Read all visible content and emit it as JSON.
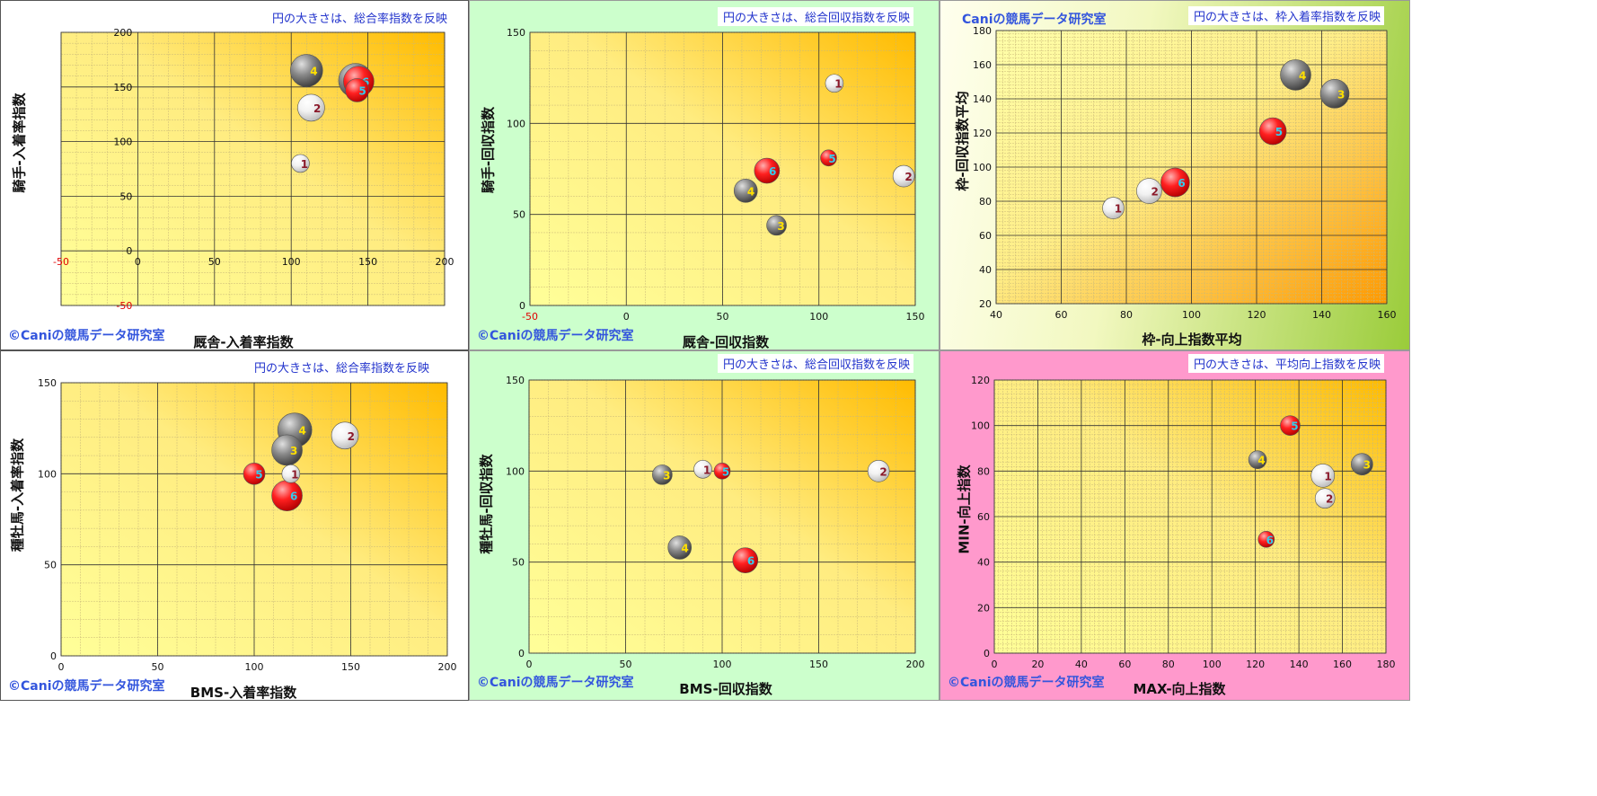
{
  "colors": {
    "red_ball": "#e00000",
    "white_ball": "#f2f2f2",
    "gray_ball": "#7a7a7a",
    "label_yellow": "#ffe000",
    "label_cyan": "#33ccee",
    "label_maroon": "#8b1a2b",
    "panel_green": "#ccffcc",
    "panel_pink": "#ff99cc",
    "credit_blue": "#3355dd"
  },
  "chart_data": [
    {
      "type": "bubble",
      "note": "円の大きさは、総合率指数を反映",
      "credit": "©Caniの競馬データ研究室",
      "xlabel": "厩舎-入着率指数",
      "ylabel": "騎手-入着率指数",
      "xlim": [
        -50,
        200
      ],
      "ylim": [
        -50,
        200
      ],
      "xticks": [
        -50,
        0,
        50,
        100,
        150,
        200
      ],
      "yticks": [
        -50,
        0,
        50,
        100,
        150,
        200
      ],
      "grid": true,
      "legend": "none",
      "points": [
        {
          "label": "1",
          "x": 106,
          "y": 80,
          "size": 10,
          "color": "white"
        },
        {
          "label": "2",
          "x": 113,
          "y": 131,
          "size": 15,
          "color": "white"
        },
        {
          "label": "3",
          "x": 142,
          "y": 156,
          "size": 19,
          "color": "gray"
        },
        {
          "label": "4",
          "x": 110,
          "y": 165,
          "size": 18,
          "color": "gray"
        },
        {
          "label": "5",
          "x": 143,
          "y": 147,
          "size": 13,
          "color": "red"
        },
        {
          "label": "6",
          "x": 144,
          "y": 155,
          "size": 17,
          "color": "red"
        }
      ]
    },
    {
      "type": "bubble",
      "note": "円の大きさは、総合回収指数を反映",
      "credit": "©Caniの競馬データ研究室",
      "xlabel": "厩舎-回収指数",
      "ylabel": "騎手-回収指数",
      "xlim": [
        -50,
        150
      ],
      "ylim": [
        0,
        150
      ],
      "xticks": [
        -50,
        0,
        50,
        100,
        150
      ],
      "yticks": [
        0,
        50,
        100,
        150
      ],
      "grid": true,
      "legend": "none",
      "points": [
        {
          "label": "1",
          "x": 108,
          "y": 122,
          "size": 10,
          "color": "white"
        },
        {
          "label": "2",
          "x": 144,
          "y": 71,
          "size": 12,
          "color": "white"
        },
        {
          "label": "3",
          "x": 78,
          "y": 44,
          "size": 11,
          "color": "gray"
        },
        {
          "label": "4",
          "x": 62,
          "y": 63,
          "size": 13,
          "color": "gray"
        },
        {
          "label": "5",
          "x": 105,
          "y": 81,
          "size": 9,
          "color": "red"
        },
        {
          "label": "6",
          "x": 73,
          "y": 74,
          "size": 14,
          "color": "red"
        }
      ]
    },
    {
      "type": "bubble",
      "note": "円の大きさは、枠入着率指数を反映",
      "credit": "Caniの競馬データ研究室",
      "xlabel": "枠-向上指数平均",
      "ylabel": "枠-回収指数平均",
      "xlim": [
        40,
        160
      ],
      "ylim": [
        20,
        180
      ],
      "xticks": [
        40,
        60,
        80,
        100,
        120,
        140,
        160
      ],
      "yticks": [
        20,
        40,
        60,
        80,
        100,
        120,
        140,
        160,
        180
      ],
      "grid": true,
      "legend": "none",
      "points": [
        {
          "label": "1",
          "x": 76,
          "y": 76,
          "size": 12,
          "color": "white"
        },
        {
          "label": "2",
          "x": 87,
          "y": 86,
          "size": 14,
          "color": "white"
        },
        {
          "label": "3",
          "x": 144,
          "y": 143,
          "size": 16,
          "color": "gray"
        },
        {
          "label": "4",
          "x": 132,
          "y": 154,
          "size": 17,
          "color": "gray"
        },
        {
          "label": "5",
          "x": 125,
          "y": 121,
          "size": 15,
          "color": "red"
        },
        {
          "label": "6",
          "x": 95,
          "y": 91,
          "size": 16,
          "color": "red"
        }
      ]
    },
    {
      "type": "bubble",
      "note": "円の大きさは、総合率指数を反映",
      "credit": "©Caniの競馬データ研究室",
      "xlabel": "BMS-入着率指数",
      "ylabel": "種牡馬-入着率指数",
      "xlim": [
        0,
        200
      ],
      "ylim": [
        0,
        150
      ],
      "xticks": [
        0,
        50,
        100,
        150,
        200
      ],
      "yticks": [
        0,
        50,
        100,
        150
      ],
      "grid": true,
      "legend": "none",
      "points": [
        {
          "label": "1",
          "x": 119,
          "y": 100,
          "size": 10,
          "color": "white"
        },
        {
          "label": "2",
          "x": 147,
          "y": 121,
          "size": 15,
          "color": "white"
        },
        {
          "label": "3",
          "x": 117,
          "y": 113,
          "size": 17,
          "color": "gray"
        },
        {
          "label": "4",
          "x": 121,
          "y": 124,
          "size": 19,
          "color": "gray"
        },
        {
          "label": "5",
          "x": 100,
          "y": 100,
          "size": 12,
          "color": "red"
        },
        {
          "label": "6",
          "x": 117,
          "y": 88,
          "size": 17,
          "color": "red"
        }
      ]
    },
    {
      "type": "bubble",
      "note": "円の大きさは、総合回収指数を反映",
      "credit": "©Caniの競馬データ研究室",
      "xlabel": "BMS-回収指数",
      "ylabel": "種牡馬-回収指数",
      "xlim": [
        0,
        200
      ],
      "ylim": [
        0,
        150
      ],
      "xticks": [
        0,
        50,
        100,
        150,
        200
      ],
      "yticks": [
        0,
        50,
        100,
        150
      ],
      "grid": true,
      "legend": "none",
      "points": [
        {
          "label": "1",
          "x": 90,
          "y": 101,
          "size": 10,
          "color": "white"
        },
        {
          "label": "2",
          "x": 181,
          "y": 100,
          "size": 12,
          "color": "white"
        },
        {
          "label": "3",
          "x": 69,
          "y": 98,
          "size": 11,
          "color": "gray"
        },
        {
          "label": "4",
          "x": 78,
          "y": 58,
          "size": 13,
          "color": "gray"
        },
        {
          "label": "5",
          "x": 100,
          "y": 100,
          "size": 9,
          "color": "red"
        },
        {
          "label": "6",
          "x": 112,
          "y": 51,
          "size": 14,
          "color": "red"
        }
      ]
    },
    {
      "type": "bubble",
      "note": "円の大きさは、平均向上指数を反映",
      "credit": "©Caniの競馬データ研究室",
      "xlabel": "MAX-向上指数",
      "ylabel": "MIN-向上指数",
      "xlim": [
        0,
        180
      ],
      "ylim": [
        0,
        120
      ],
      "xticks": [
        0,
        20,
        40,
        60,
        80,
        100,
        120,
        140,
        160,
        180
      ],
      "yticks": [
        0,
        20,
        40,
        60,
        80,
        100,
        120
      ],
      "grid": true,
      "legend": "none",
      "points": [
        {
          "label": "1",
          "x": 151,
          "y": 78,
          "size": 13,
          "color": "white"
        },
        {
          "label": "2",
          "x": 152,
          "y": 68,
          "size": 11,
          "color": "white"
        },
        {
          "label": "3",
          "x": 169,
          "y": 83,
          "size": 12,
          "color": "gray"
        },
        {
          "label": "4",
          "x": 121,
          "y": 85,
          "size": 10,
          "color": "gray"
        },
        {
          "label": "5",
          "x": 136,
          "y": 100,
          "size": 11,
          "color": "red"
        },
        {
          "label": "6",
          "x": 125,
          "y": 50,
          "size": 9,
          "color": "red"
        }
      ]
    }
  ]
}
